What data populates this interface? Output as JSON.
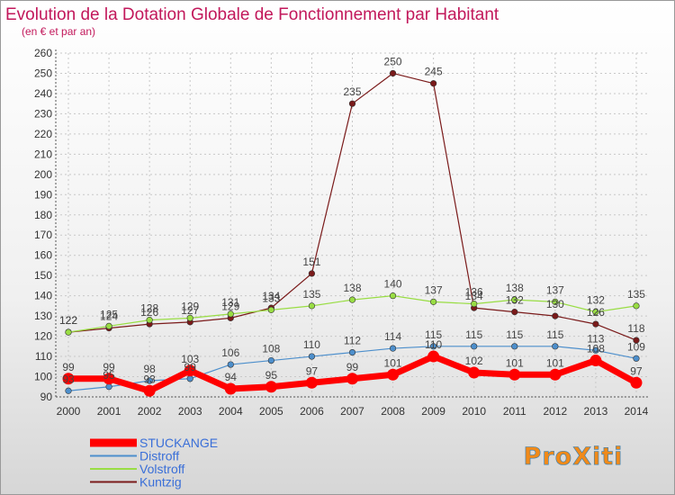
{
  "chart_data": {
    "type": "line",
    "title": "Evolution de la Dotation Globale de Fonctionnement par Habitant",
    "subtitle": "(en € et par an)",
    "xlabel": "",
    "ylabel": "",
    "ylim": [
      90,
      260
    ],
    "ytick_step": 10,
    "grid": true,
    "legend_position": "bottom-left",
    "categories": [
      "2000",
      "2001",
      "2002",
      "2003",
      "2004",
      "2005",
      "2006",
      "2007",
      "2008",
      "2009",
      "2010",
      "2011",
      "2012",
      "2013",
      "2014"
    ],
    "series": [
      {
        "name": "STUCKANGE",
        "color": "#ff0000",
        "values": [
          99,
          99,
          93,
          103,
          94,
          95,
          97,
          99,
          101,
          110,
          102,
          101,
          101,
          108,
          97
        ],
        "labels": [
          "99",
          "99",
          "93",
          "103",
          "94",
          "95",
          "97",
          "99",
          "101",
          "110",
          "102",
          "101",
          "101",
          "108",
          "97"
        ]
      },
      {
        "name": "Distroff",
        "color": "#4d8fcc",
        "values": [
          93,
          95,
          98,
          99,
          106,
          108,
          110,
          112,
          114,
          115,
          115,
          115,
          115,
          113,
          109
        ],
        "labels": [
          "93",
          "95",
          "98",
          "99",
          "106",
          "108",
          "110",
          "112",
          "114",
          "115",
          "115",
          "115",
          "115",
          "113",
          "109"
        ]
      },
      {
        "name": "Volstroff",
        "color": "#99dd44",
        "values": [
          122,
          125,
          128,
          129,
          131,
          133,
          135,
          138,
          140,
          137,
          136,
          138,
          137,
          132,
          135
        ],
        "labels": [
          "122",
          "125",
          "128",
          "129",
          "131",
          "133",
          "135",
          "138",
          "140",
          "137",
          "136",
          "138",
          "137",
          "132",
          "135"
        ]
      },
      {
        "name": "Kuntzig",
        "color": "#7a1a1a",
        "values": [
          122,
          124,
          126,
          127,
          129,
          134,
          151,
          235,
          250,
          245,
          134,
          132,
          130,
          126,
          118
        ],
        "labels": [
          "122",
          "124",
          "126",
          "127",
          "129",
          "134",
          "151",
          "235",
          "250",
          "245",
          "134",
          "132",
          "130",
          "126",
          "118"
        ]
      }
    ]
  },
  "branding": {
    "logo_text": "ProXiti"
  }
}
